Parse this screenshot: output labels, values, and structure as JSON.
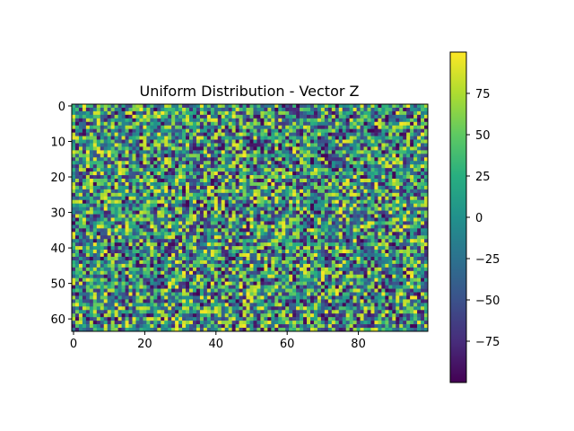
{
  "chart_data": {
    "type": "heatmap",
    "title": "Uniform Distribution - Vector Z",
    "colormap": "viridis",
    "rows": 64,
    "cols": 100,
    "value_range": [
      -100,
      100
    ],
    "x_ticks": [
      0,
      20,
      40,
      60,
      80
    ],
    "y_ticks": [
      0,
      10,
      20,
      30,
      40,
      50,
      60
    ],
    "colorbar_ticks": [
      75,
      50,
      25,
      0,
      -25,
      -50,
      -75
    ],
    "colorbar_tick_labels": [
      "75",
      "50",
      "25",
      "0",
      "−25",
      "−50",
      "−75"
    ]
  }
}
